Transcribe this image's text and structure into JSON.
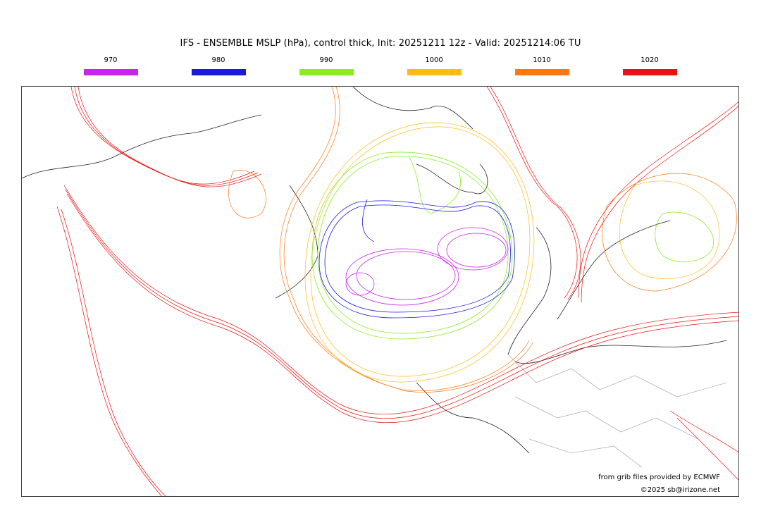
{
  "title": "IFS - ENSEMBLE MSLP (hPa), control thick, Init: 20251211 12z - Valid: 20251214:06 TU",
  "legend": [
    {
      "label": "970",
      "color": "#cc22ee"
    },
    {
      "label": "980",
      "color": "#1a1add"
    },
    {
      "label": "990",
      "color": "#88ee22"
    },
    {
      "label": "1000",
      "color": "#ffbb11"
    },
    {
      "label": "1010",
      "color": "#ff7711"
    },
    {
      "label": "1020",
      "color": "#ee1111"
    }
  ],
  "credits": {
    "source": "from grib files provided by ECMWF",
    "copyright": "©2025 sb@irizone.net"
  }
}
